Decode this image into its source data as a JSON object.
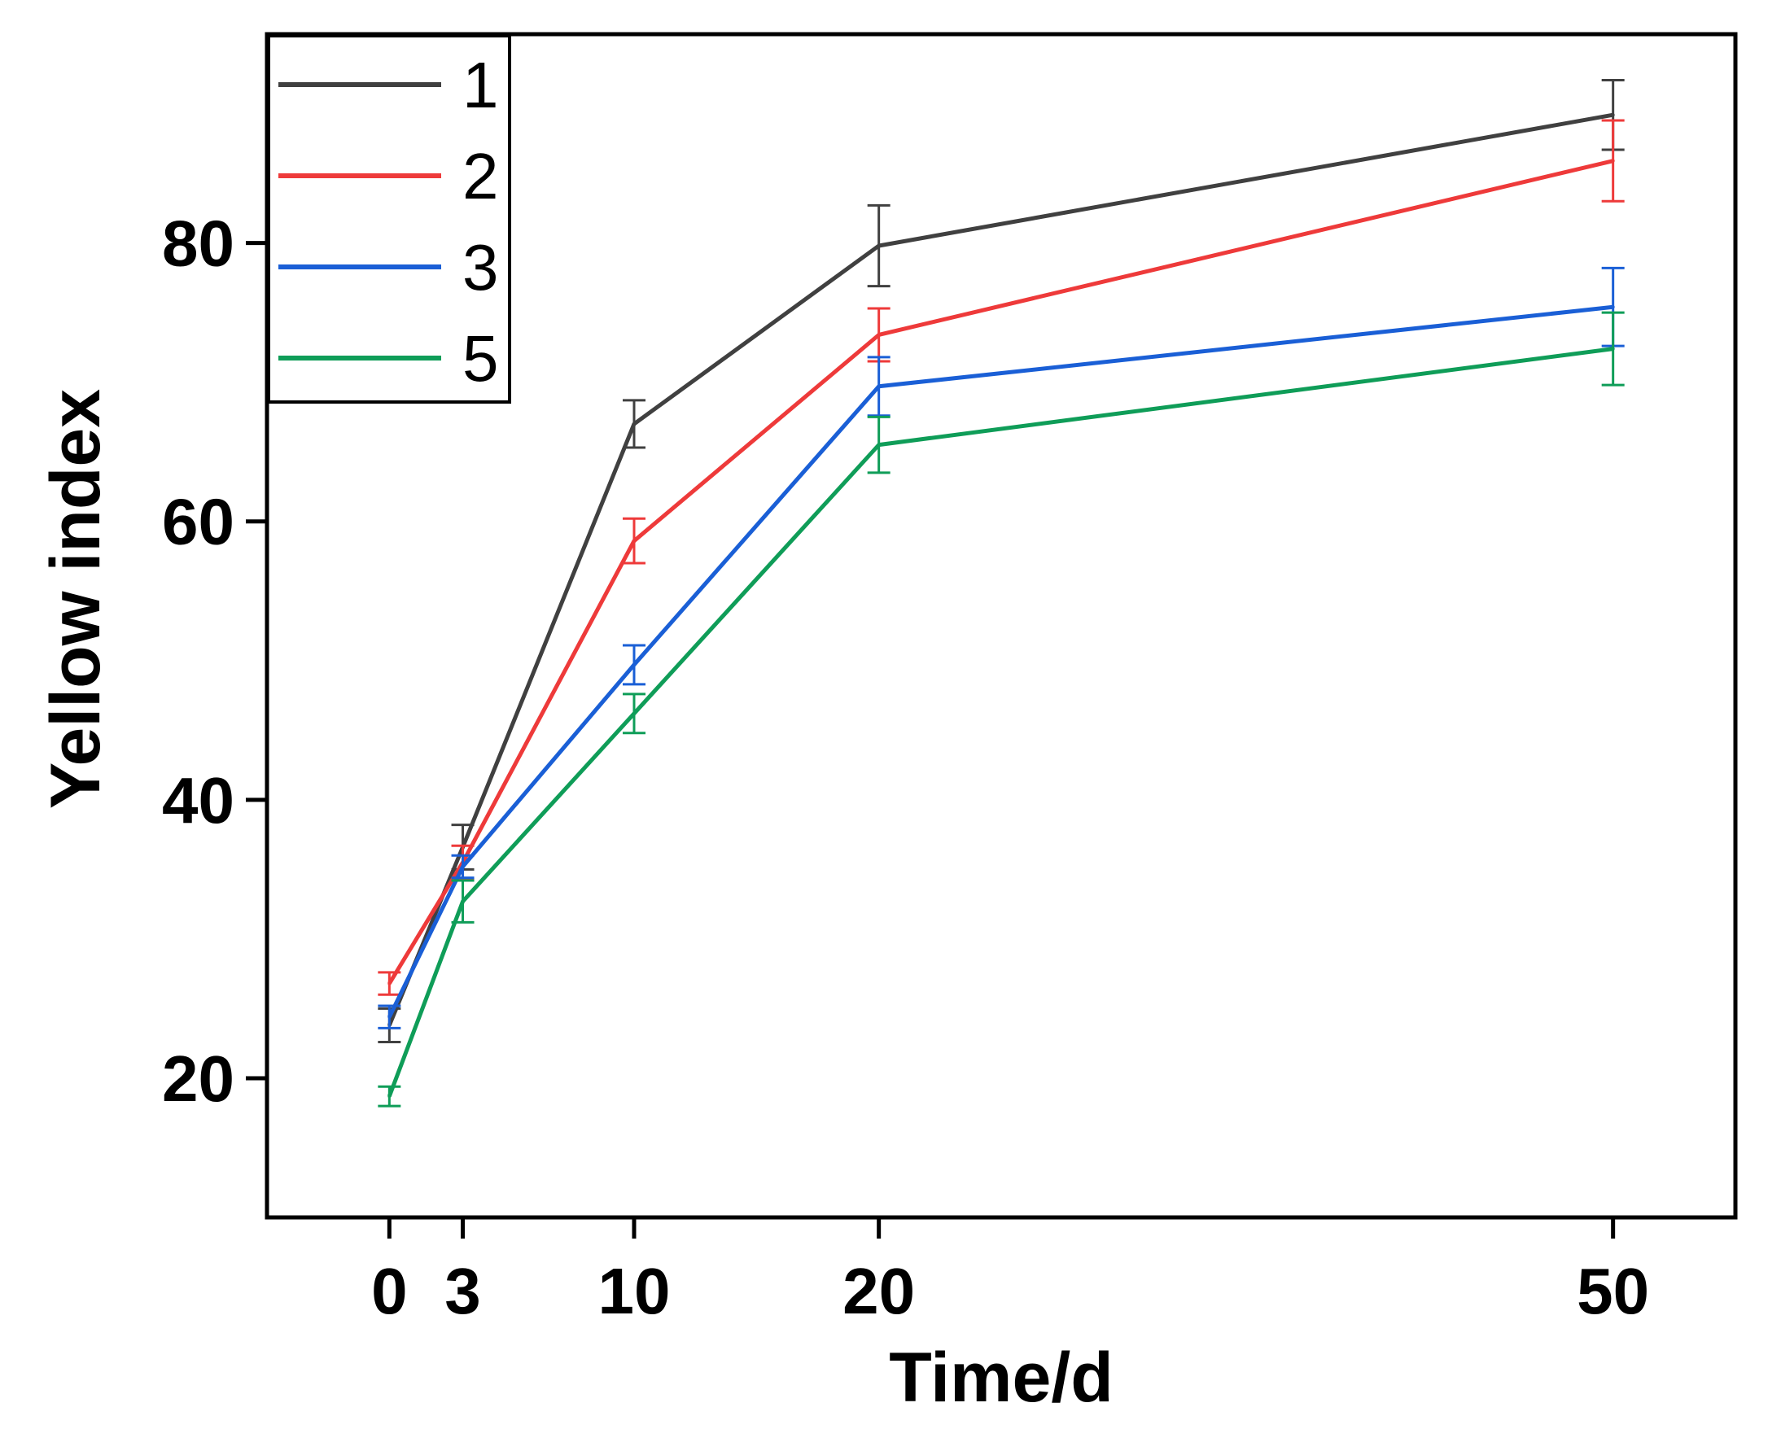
{
  "chart_data": {
    "type": "line",
    "title": "",
    "xlabel": "Time/d",
    "ylabel": "Yellow index",
    "x": [
      0,
      3,
      10,
      20,
      50
    ],
    "x_ticks": [
      "0",
      "3",
      "10",
      "20",
      "50"
    ],
    "y_ticks": [
      "20",
      "40",
      "60",
      "80"
    ],
    "y_tick_values": [
      20,
      40,
      60,
      80
    ],
    "xlim": [
      -5,
      55
    ],
    "ylim": [
      10,
      95
    ],
    "legend_position": "top-left",
    "grid": false,
    "series": [
      {
        "name": "1",
        "color": "#404040",
        "values": [
          23.8,
          36.6,
          67.0,
          79.8,
          89.2
        ],
        "errors": [
          1.2,
          1.6,
          1.7,
          2.9,
          2.5
        ]
      },
      {
        "name": "2",
        "color": "#ee3a3a",
        "values": [
          26.8,
          35.5,
          58.6,
          73.4,
          85.9
        ],
        "errors": [
          0.8,
          1.2,
          1.6,
          1.9,
          2.9
        ]
      },
      {
        "name": "3",
        "color": "#1a5fd6",
        "values": [
          24.4,
          35.2,
          49.7,
          69.7,
          75.4
        ],
        "errors": [
          0.8,
          0.8,
          1.4,
          2.1,
          2.8
        ]
      },
      {
        "name": "5",
        "color": "#0f9d58",
        "values": [
          18.7,
          32.7,
          46.2,
          65.5,
          72.4
        ],
        "errors": [
          0.7,
          1.5,
          1.4,
          2.0,
          2.6
        ]
      }
    ]
  }
}
